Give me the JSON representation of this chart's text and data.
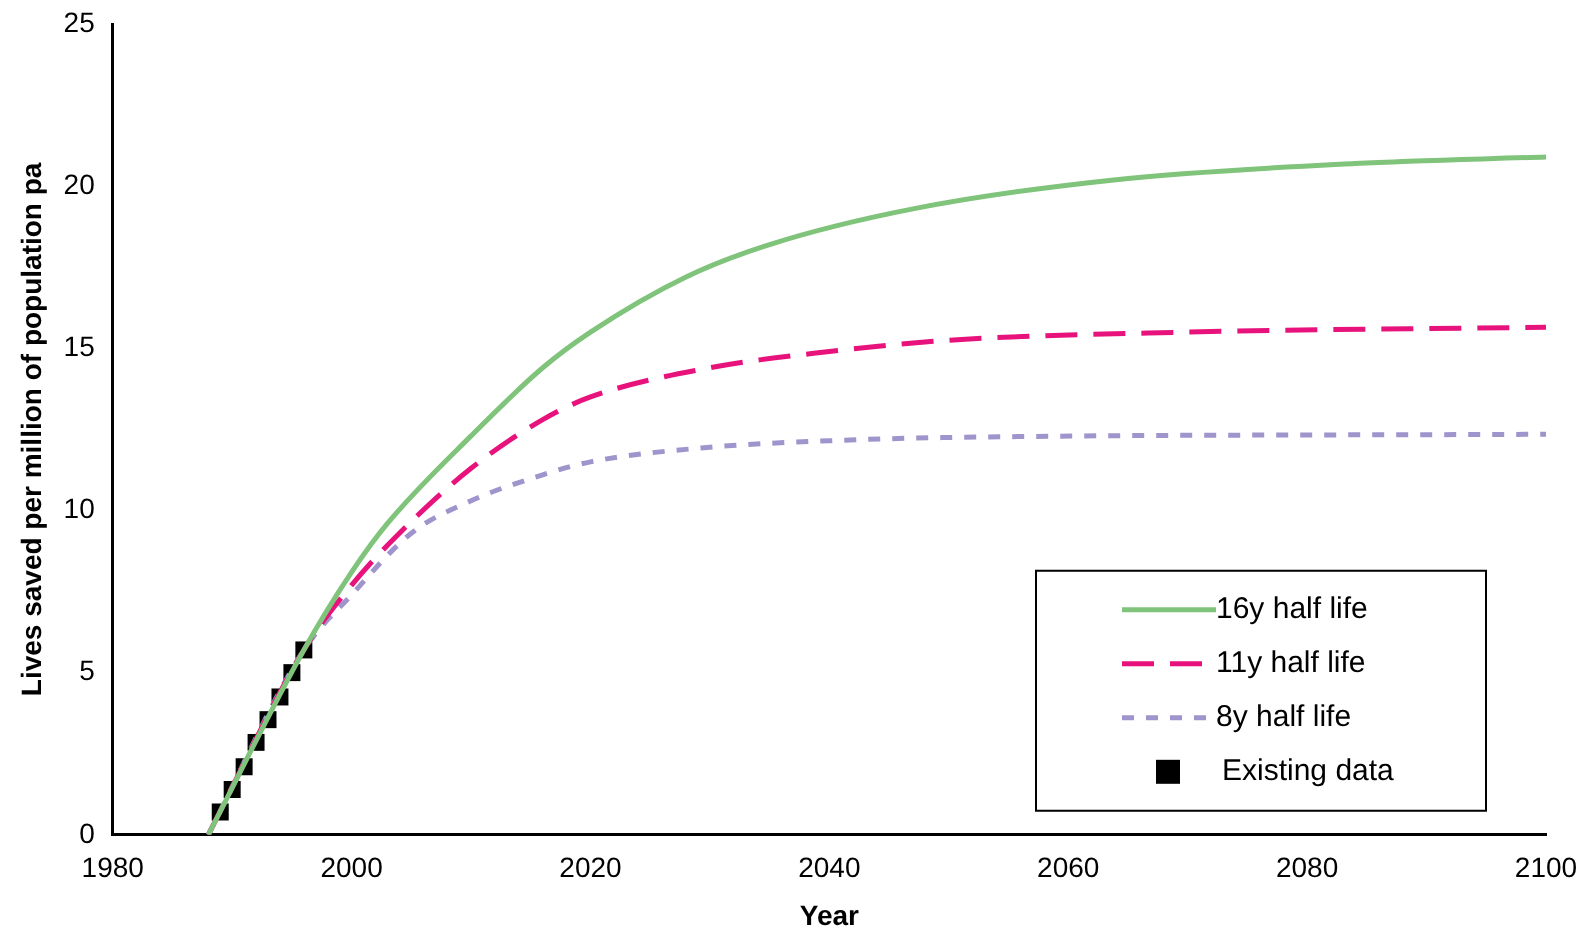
{
  "chart_data": {
    "type": "line",
    "xlabel": "Year",
    "ylabel": "Lives saved per million of population pa",
    "xlim": [
      1980,
      2100
    ],
    "xticks": [
      1980,
      2000,
      2020,
      2040,
      2060,
      2080,
      2100
    ],
    "ylim": [
      0,
      25
    ],
    "yticks": [
      0,
      5,
      10,
      15,
      20,
      25
    ],
    "grid": false,
    "legend": "bottom right",
    "series": [
      {
        "name": "16y half life",
        "color": "#7fc47a",
        "line_style": "solid",
        "marker": "none",
        "x": [
          1988,
          1996,
          2000,
          2003,
          2010,
          2016,
          2020,
          2028,
          2035,
          2047,
          2064,
          2084,
          2100
        ],
        "values": [
          0,
          5.7,
          8.1,
          9.6,
          12.3,
          14.4,
          15.5,
          17.2,
          18.2,
          19.3,
          20.2,
          20.7,
          20.9
        ]
      },
      {
        "name": "11y half life",
        "color": "#e8127c",
        "line_style": "dashed",
        "marker": "none",
        "x": [
          1988,
          1996,
          2000,
          2004,
          2010,
          2016,
          2020,
          2030,
          2040,
          2050,
          2070,
          2100
        ],
        "values": [
          0,
          5.7,
          7.7,
          9.3,
          11.3,
          12.8,
          13.5,
          14.4,
          14.9,
          15.25,
          15.5,
          15.65
        ]
      },
      {
        "name": "8y half life",
        "color": "#9f94cc",
        "line_style": "dotted",
        "marker": "none",
        "x": [
          1988,
          1996,
          2000,
          2005,
          2010,
          2016,
          2020,
          2030,
          2040,
          2050,
          2100
        ],
        "values": [
          0,
          5.7,
          7.4,
          9.3,
          10.3,
          11.1,
          11.5,
          11.95,
          12.15,
          12.25,
          12.35
        ]
      },
      {
        "name": "Existing data",
        "type": "scatter",
        "color": "#000000",
        "marker": "square",
        "x": [
          1989,
          1990,
          1991,
          1992,
          1993,
          1994,
          1995,
          1996
        ],
        "values": [
          0.7,
          1.4,
          2.1,
          2.85,
          3.55,
          4.25,
          5.0,
          5.7
        ]
      }
    ]
  }
}
